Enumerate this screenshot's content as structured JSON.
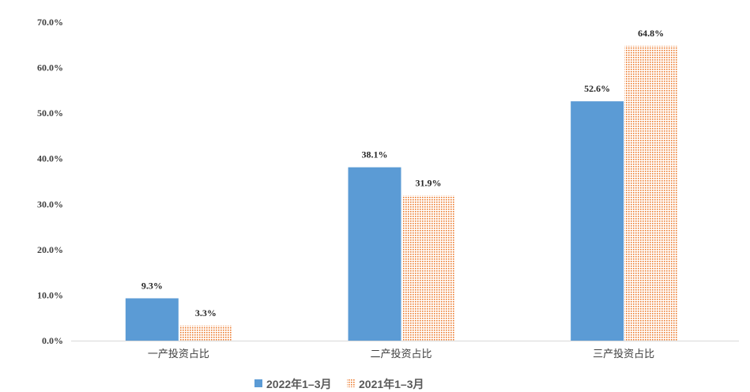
{
  "chart_data": {
    "type": "bar",
    "categories": [
      "一产投资占比",
      "二产投资占比",
      "三产投资占比"
    ],
    "series": [
      {
        "name": "2022年1–3月",
        "values": [
          9.3,
          38.1,
          52.6
        ],
        "color": "#5B9BD5",
        "fill": "solid"
      },
      {
        "name": "2021年1–3月",
        "values": [
          3.3,
          31.9,
          64.8
        ],
        "color": "#ED7D31",
        "fill": "dotted"
      }
    ],
    "data_labels": [
      [
        "9.3%",
        "38.1%",
        "52.6%"
      ],
      [
        "3.3%",
        "31.9%",
        "64.8%"
      ]
    ],
    "yticks": [
      "0.0%",
      "10.0%",
      "20.0%",
      "30.0%",
      "40.0%",
      "50.0%",
      "60.0%",
      "70.0%"
    ],
    "ylim": [
      0,
      70
    ],
    "grid": false,
    "legend": "bottom"
  }
}
